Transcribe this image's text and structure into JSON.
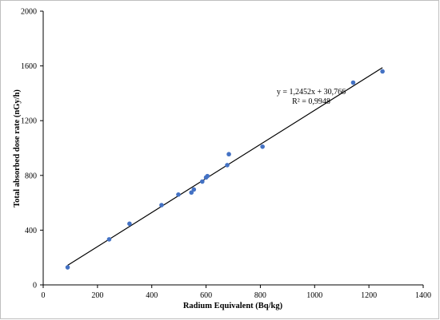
{
  "chart_data": {
    "type": "scatter",
    "title": "",
    "xlabel": "Radium Equivalent (Bq/kg)",
    "ylabel": "Total absorbed dose rate (nGy/h)",
    "xlim": [
      0,
      1400
    ],
    "ylim": [
      0,
      2000
    ],
    "xticks": [
      0,
      200,
      400,
      600,
      800,
      1000,
      1200,
      1400
    ],
    "yticks": [
      0,
      400,
      800,
      1200,
      1600,
      2000
    ],
    "grid": false,
    "legend": "none",
    "point_color": "#4472c4",
    "series": [
      {
        "x": [
          90,
          243,
          318,
          436,
          498,
          546,
          555,
          586,
          600,
          605,
          678,
          684,
          808,
          1142,
          1250
        ],
        "y": [
          128,
          333,
          447,
          583,
          660,
          675,
          697,
          755,
          785,
          795,
          875,
          955,
          1010,
          1478,
          1560
        ]
      }
    ],
    "trendline": {
      "slope": 1.2452,
      "intercept": 30.766,
      "x_range": [
        90,
        1250
      ],
      "equation_label": "y = 1,2452x + 30,766",
      "r2_label": "R² = 0,9948"
    }
  }
}
